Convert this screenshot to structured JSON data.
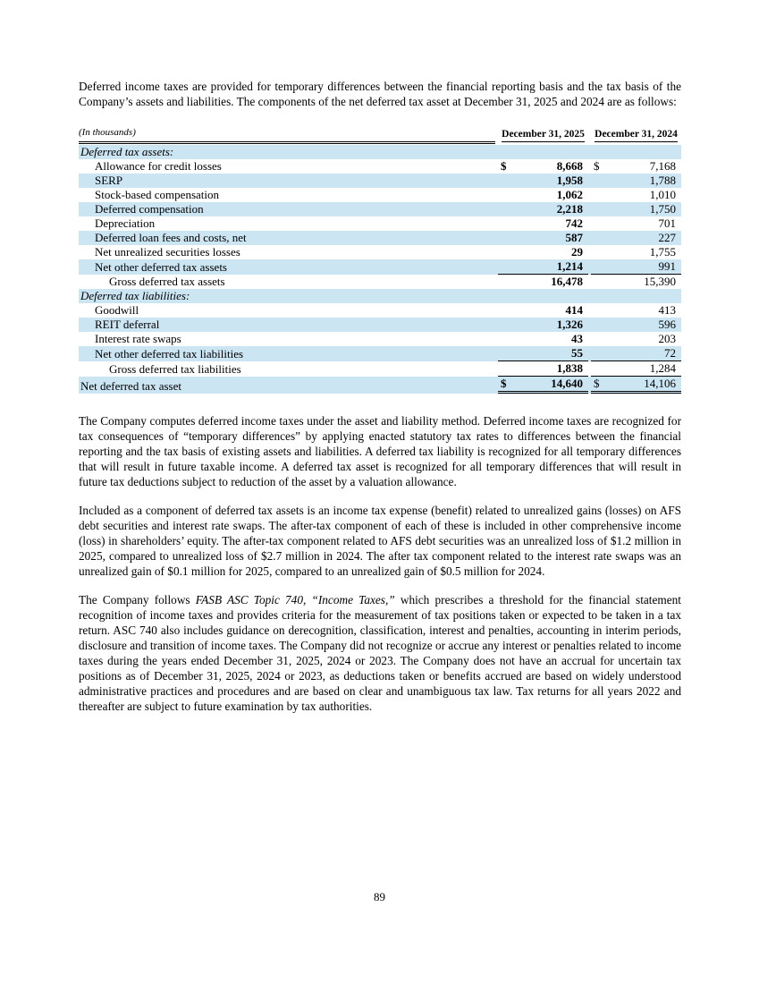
{
  "colors": {
    "row_shade": "#cbe5f3"
  },
  "intro": "Deferred income taxes are provided for temporary differences between the financial reporting basis and the tax basis of the Company’s assets and liabilities. The components of the net deferred tax asset at December 31, 2025 and 2024 are as follows:",
  "table": {
    "in_thousands_label": "(In thousands)",
    "header_2025": "December 31, 2025",
    "header_2024": "December 31, 2024",
    "rows": [
      {
        "label": "Deferred tax assets:",
        "indent": 0,
        "italic": true,
        "shaded": true,
        "v25": "",
        "v24": ""
      },
      {
        "label": "Allowance for credit losses",
        "indent": 1,
        "d25": "$",
        "v25": "8,668",
        "d24": "$",
        "v24": "7,168"
      },
      {
        "label": "SERP",
        "indent": 1,
        "shaded": true,
        "v25": "1,958",
        "v24": "1,788"
      },
      {
        "label": "Stock-based compensation",
        "indent": 1,
        "v25": "1,062",
        "v24": "1,010"
      },
      {
        "label": "Deferred compensation",
        "indent": 1,
        "shaded": true,
        "v25": "2,218",
        "v24": "1,750"
      },
      {
        "label": "Depreciation",
        "indent": 1,
        "v25": "742",
        "v24": "701"
      },
      {
        "label": "Deferred loan fees and costs, net",
        "indent": 1,
        "shaded": true,
        "v25": "587",
        "v24": "227"
      },
      {
        "label": "Net unrealized securities losses",
        "indent": 1,
        "v25": "29",
        "v24": "1,755"
      },
      {
        "label": "Net other deferred tax assets",
        "indent": 1,
        "shaded": true,
        "rule": "single",
        "v25": "1,214",
        "v24": "991"
      },
      {
        "label": "Gross deferred tax assets",
        "indent": 2,
        "v25": "16,478",
        "v24": "15,390"
      },
      {
        "label": "Deferred tax liabilities:",
        "indent": 0,
        "italic": true,
        "shaded": true,
        "v25": "",
        "v24": ""
      },
      {
        "label": "Goodwill",
        "indent": 1,
        "v25": "414",
        "v24": "413"
      },
      {
        "label": "REIT deferral",
        "indent": 1,
        "shaded": true,
        "v25": "1,326",
        "v24": "596"
      },
      {
        "label": "Interest rate swaps",
        "indent": 1,
        "v25": "43",
        "v24": "203"
      },
      {
        "label": "Net other deferred tax liabilities",
        "indent": 1,
        "shaded": true,
        "rule": "single",
        "v25": "55",
        "v24": "72"
      },
      {
        "label": "Gross deferred tax liabilities",
        "indent": 2,
        "rule": "single",
        "v25": "1,838",
        "v24": "1,284"
      },
      {
        "label": "Net deferred tax asset",
        "indent": 0,
        "shaded": true,
        "rule": "double",
        "d25": "$",
        "v25": "14,640",
        "d24": "$",
        "v24": "14,106"
      }
    ]
  },
  "paragraphs": [
    {
      "segments": [
        {
          "text": "The Company computes deferred income taxes under the asset and liability method. Deferred income taxes are recognized for tax consequences of “temporary differences” by applying enacted statutory tax rates to differences between the financial reporting and the tax basis of existing assets and liabilities. A deferred tax liability is recognized for all temporary differences that will result in future taxable income. A deferred tax asset is recognized for all temporary differences that will result in future tax deductions subject to reduction of the asset by a valuation allowance.",
          "italic": false
        }
      ]
    },
    {
      "segments": [
        {
          "text": "Included as a component of deferred tax assets is an income tax expense (benefit) related to unrealized gains (losses) on AFS debt securities and interest rate swaps. The after-tax component of each of these is included in other comprehensive income (loss) in shareholders’ equity. The after-tax component related to AFS debt securities was an unrealized loss of $1.2 million in 2025, compared to unrealized loss of $2.7 million in 2024. The after tax component related to the interest rate swaps was an unrealized gain of $0.1 million for 2025, compared to an unrealized gain of $0.5 million for 2024.",
          "italic": false
        }
      ]
    },
    {
      "segments": [
        {
          "text": "The Company follows ",
          "italic": false
        },
        {
          "text": "FASB ASC Topic 740, “Income Taxes,”",
          "italic": true
        },
        {
          "text": " which prescribes a threshold for the financial statement recognition of income taxes and provides criteria for the measurement of tax positions taken or expected to be taken in a tax return. ASC 740 also includes guidance on derecognition, classification, interest and penalties, accounting in interim periods, disclosure and transition of income taxes. The Company did not recognize or accrue any interest or penalties related to income taxes during the years ended December 31, 2025, 2024 or 2023. The Company does not have an accrual for uncertain tax positions as of December 31, 2025, 2024 or 2023, as deductions taken or benefits accrued are based on widely understood administrative practices and procedures and are based on clear and unambiguous tax law. Tax returns for all years 2022 and thereafter are subject to future examination by tax authorities.",
          "italic": false
        }
      ]
    }
  ],
  "page_number": "89"
}
